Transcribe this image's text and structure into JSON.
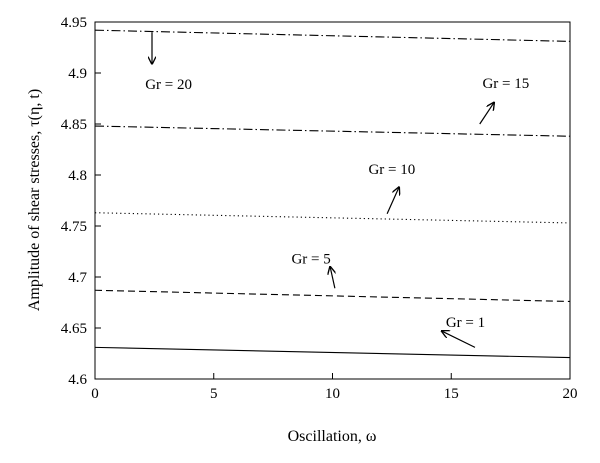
{
  "chart_data": {
    "type": "line",
    "title": "",
    "xlabel": "Oscillation, ω",
    "ylabel": "Amplitude of shear stresses, τ(η, t)",
    "xlim": [
      0,
      20
    ],
    "ylim": [
      4.6,
      4.95
    ],
    "xticks": [
      0,
      5,
      10,
      15,
      20
    ],
    "xtick_labels": [
      "0",
      "5",
      "10",
      "15",
      "20"
    ],
    "yticks": [
      4.6,
      4.65,
      4.7,
      4.75,
      4.8,
      4.85,
      4.9,
      4.95
    ],
    "ytick_labels": [
      "4.6",
      "4.65",
      "4.7",
      "4.75",
      "4.8",
      "4.85",
      "4.9",
      "4.95"
    ],
    "grid": false,
    "series": [
      {
        "name": "Gr = 1",
        "style": "solid",
        "x": [
          0,
          20
        ],
        "y": [
          4.631,
          4.621
        ]
      },
      {
        "name": "Gr = 5",
        "style": "dashed",
        "x": [
          0,
          20
        ],
        "y": [
          4.687,
          4.676
        ]
      },
      {
        "name": "Gr = 10",
        "style": "dotted",
        "x": [
          0,
          20
        ],
        "y": [
          4.763,
          4.753
        ]
      },
      {
        "name": "Gr = 15",
        "style": "dashdot",
        "x": [
          0,
          20
        ],
        "y": [
          4.848,
          4.838
        ]
      },
      {
        "name": "Gr = 20",
        "style": "dashdot",
        "x": [
          0,
          20
        ],
        "y": [
          4.942,
          4.931
        ]
      }
    ],
    "annotations": [
      {
        "text": "Gr = 1",
        "label_at": [
          15.6,
          4.656
        ],
        "arrow_from": [
          16.0,
          4.631
        ],
        "arrow_to": [
          14.6,
          4.647
        ]
      },
      {
        "text": "Gr = 5",
        "label_at": [
          9.1,
          4.718
        ],
        "arrow_from": [
          10.1,
          4.689
        ],
        "arrow_to": [
          9.9,
          4.71
        ]
      },
      {
        "text": "Gr = 10",
        "label_at": [
          12.5,
          4.806
        ],
        "arrow_from": [
          12.3,
          4.762
        ],
        "arrow_to": [
          12.8,
          4.788
        ]
      },
      {
        "text": "Gr = 15",
        "label_at": [
          17.3,
          4.89
        ],
        "arrow_from": [
          16.2,
          4.85
        ],
        "arrow_to": [
          16.8,
          4.871
        ]
      },
      {
        "text": "Gr = 20",
        "label_at": [
          3.1,
          4.889
        ],
        "arrow_from": [
          2.4,
          4.94
        ],
        "arrow_to": [
          2.4,
          4.909
        ]
      }
    ]
  }
}
